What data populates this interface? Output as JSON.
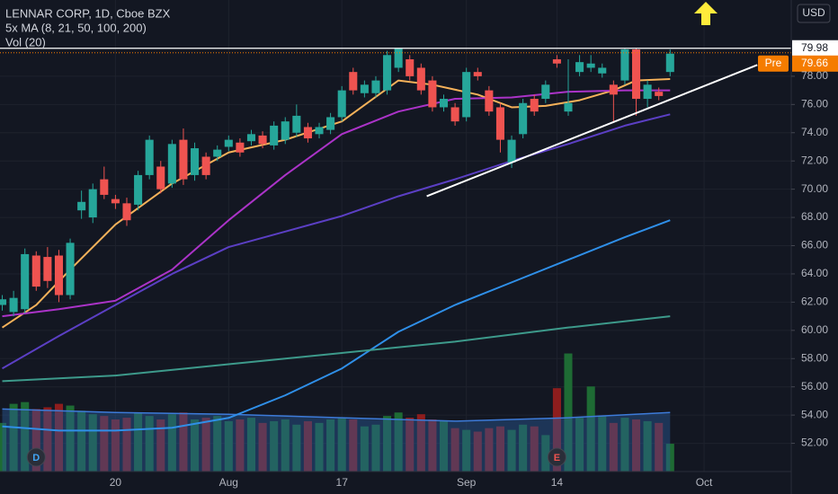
{
  "chart_data": {
    "type": "candlestick",
    "title": "LENNAR CORP, 1D, Cboe BZX",
    "indicator_label": "5x MA (8, 21, 50, 100, 200)",
    "volume_label": "Vol (20)",
    "currency": "USD",
    "up_color": "#26a69a",
    "down_color": "#ef5350",
    "volume_colors": {
      "up": "#1e6b34",
      "down": "#8e1d1d"
    },
    "open": [
      61.8,
      61.3,
      61.5,
      65.3,
      65.2,
      65.3,
      62.5,
      68.5,
      68.0,
      70.7,
      69.3,
      69.0,
      68.9,
      71.0,
      71.6,
      70.4,
      73.5,
      71.0,
      72.3,
      72.3,
      73.0,
      73.3,
      73.4,
      73.8,
      73.1,
      73.5,
      74.0,
      74.4,
      73.9,
      74.2,
      75.1,
      78.3,
      76.8,
      76.8,
      77.0,
      78.6,
      79.2,
      78.6,
      77.7,
      75.8,
      75.8,
      75.1,
      78.3,
      77.0,
      75.8,
      71.9,
      73.9,
      76.4,
      76.4,
      79.2,
      75.5,
      78.3,
      78.6,
      78.2,
      77.4,
      77.7,
      79.9,
      76.4,
      76.9,
      78.3
    ],
    "high": [
      62.5,
      62.8,
      65.8,
      65.6,
      65.9,
      65.7,
      66.5,
      69.9,
      70.4,
      71.6,
      69.6,
      69.4,
      71.3,
      73.8,
      72.0,
      73.5,
      74.3,
      73.3,
      72.6,
      73.1,
      73.8,
      73.6,
      74.2,
      74.1,
      74.8,
      75.1,
      76.0,
      74.7,
      74.7,
      75.4,
      77.3,
      78.6,
      77.7,
      78.0,
      79.8,
      79.98,
      79.5,
      78.9,
      78.0,
      76.7,
      76.1,
      78.6,
      78.6,
      77.3,
      76.1,
      73.8,
      76.4,
      76.7,
      77.7,
      79.5,
      79.2,
      79.5,
      79.5,
      78.9,
      77.7,
      79.98,
      79.98,
      77.7,
      77.2,
      79.9
    ],
    "low": [
      61.4,
      61.0,
      61.2,
      62.8,
      63.0,
      62.0,
      62.2,
      67.9,
      67.6,
      69.3,
      68.6,
      67.4,
      68.5,
      70.7,
      69.7,
      70.1,
      70.3,
      70.6,
      70.7,
      72.0,
      72.7,
      72.3,
      73.1,
      72.9,
      72.8,
      73.2,
      73.7,
      73.3,
      73.6,
      73.9,
      74.8,
      76.7,
      76.5,
      76.5,
      76.7,
      78.3,
      77.7,
      76.7,
      75.5,
      75.5,
      74.5,
      74.8,
      77.7,
      75.2,
      72.6,
      71.5,
      73.6,
      75.2,
      76.1,
      78.6,
      75.2,
      78.0,
      78.3,
      77.9,
      74.8,
      77.4,
      75.2,
      75.8,
      76.3,
      78.0
    ],
    "close": [
      62.2,
      62.3,
      65.4,
      63.1,
      63.5,
      62.5,
      66.2,
      69.1,
      70.0,
      69.6,
      69.0,
      67.8,
      71.0,
      73.5,
      70.0,
      73.2,
      70.7,
      72.9,
      71.0,
      72.8,
      73.5,
      72.6,
      73.9,
      73.2,
      74.5,
      74.8,
      75.2,
      73.6,
      74.4,
      75.1,
      77.0,
      77.0,
      77.4,
      77.7,
      79.5,
      79.98,
      78.0,
      77.0,
      75.8,
      76.4,
      74.8,
      78.3,
      78.0,
      75.5,
      73.5,
      73.5,
      76.1,
      75.5,
      77.4,
      78.9,
      76.1,
      79.0,
      78.9,
      78.6,
      76.7,
      79.9,
      76.4,
      77.4,
      76.6,
      79.6
    ],
    "volume": [
      2.8,
      3.9,
      4.0,
      3.6,
      3.7,
      3.9,
      3.8,
      3.5,
      3.3,
      3.2,
      3.0,
      3.1,
      3.4,
      3.2,
      3.0,
      3.3,
      3.4,
      3.0,
      3.1,
      3.2,
      2.9,
      3.0,
      3.1,
      2.8,
      2.9,
      3.0,
      2.7,
      2.9,
      2.8,
      3.0,
      3.1,
      3.0,
      2.6,
      2.7,
      3.2,
      3.4,
      3.1,
      3.3,
      3.0,
      2.9,
      2.5,
      2.4,
      2.3,
      2.5,
      2.6,
      2.4,
      2.7,
      2.6,
      2.1,
      4.8,
      6.8,
      3.1,
      4.9,
      3.2,
      2.8,
      3.1,
      3.0,
      2.9,
      2.8,
      1.6
    ],
    "volume_ylim": [
      0,
      7.5
    ],
    "volume_ma": {
      "color": "#2a5a9a",
      "x": [
        0,
        10,
        20,
        30,
        40,
        50,
        59
      ],
      "values": [
        3.6,
        3.4,
        3.3,
        3.1,
        2.9,
        3.1,
        3.4
      ]
    },
    "series": [
      {
        "color": "#f6b25a",
        "x": [
          0,
          3,
          6,
          10,
          15,
          20,
          25,
          30,
          35,
          38,
          42,
          45,
          48,
          51,
          54,
          56,
          59
        ],
        "values": [
          60.2,
          61.8,
          64.3,
          67.5,
          70.4,
          72.6,
          73.5,
          74.8,
          77.7,
          77.4,
          76.7,
          75.8,
          75.9,
          76.3,
          77.0,
          77.7,
          77.8
        ]
      },
      {
        "color": "#ab33c8",
        "x": [
          0,
          5,
          10,
          15,
          20,
          25,
          30,
          35,
          40,
          45,
          50,
          55,
          59
        ],
        "values": [
          61.0,
          61.5,
          62.1,
          64.3,
          67.8,
          71.0,
          73.9,
          75.5,
          76.4,
          76.5,
          76.9,
          77.0,
          77.0
        ]
      },
      {
        "color": "#5b3fc4",
        "x": [
          0,
          5,
          10,
          15,
          20,
          25,
          30,
          35,
          40,
          45,
          50,
          55,
          59
        ],
        "values": [
          57.3,
          59.6,
          61.8,
          64.0,
          65.9,
          67.0,
          68.1,
          69.5,
          70.7,
          72.0,
          73.2,
          74.5,
          75.3
        ]
      },
      {
        "color": "#2f8fe8",
        "x": [
          0,
          5,
          10,
          15,
          20,
          25,
          30,
          35,
          40,
          45,
          50,
          55,
          59
        ],
        "values": [
          53.2,
          52.9,
          52.9,
          53.1,
          53.8,
          55.4,
          57.3,
          59.9,
          61.8,
          63.4,
          65.0,
          66.6,
          67.8
        ]
      },
      {
        "color": "#3d9a8b",
        "x": [
          0,
          10,
          20,
          30,
          40,
          50,
          59
        ],
        "values": [
          56.4,
          56.8,
          57.6,
          58.4,
          59.2,
          60.2,
          61.0
        ]
      }
    ],
    "trendline": {
      "color": "#ffffff",
      "x": [
        37.5,
        66.7
      ],
      "values": [
        69.5,
        78.8
      ]
    },
    "price_line": 79.98,
    "premarket": {
      "label": "Pre",
      "value": 79.66,
      "color": "#f57c00"
    },
    "events": [
      {
        "x": 3,
        "label": "D"
      },
      {
        "x": 49,
        "label": "E"
      }
    ],
    "xlim": [
      -0.2,
      69.7
    ],
    "xticks": [
      {
        "value": 10,
        "label": "20"
      },
      {
        "value": 20,
        "label": "Aug"
      },
      {
        "value": 30,
        "label": "17"
      },
      {
        "value": 41,
        "label": "Sep"
      },
      {
        "value": 49,
        "label": "14"
      },
      {
        "value": 62,
        "label": "Oct"
      }
    ],
    "ylim": [
      50.0,
      83.4
    ],
    "yticks": [
      {
        "value": 52,
        "label": "52.00"
      },
      {
        "value": 54,
        "label": "54.00"
      },
      {
        "value": 56,
        "label": "56.00"
      },
      {
        "value": 58,
        "label": "58.00"
      },
      {
        "value": 60,
        "label": "60.00"
      },
      {
        "value": 62,
        "label": "62.00"
      },
      {
        "value": 64,
        "label": "64.00"
      },
      {
        "value": 66,
        "label": "66.00"
      },
      {
        "value": 68,
        "label": "68.00"
      },
      {
        "value": 70,
        "label": "70.00"
      },
      {
        "value": 72,
        "label": "72.00"
      },
      {
        "value": 74,
        "label": "74.00"
      },
      {
        "value": 76,
        "label": "76.00"
      },
      {
        "value": 78,
        "label": "78.00"
      }
    ],
    "grid": true
  }
}
